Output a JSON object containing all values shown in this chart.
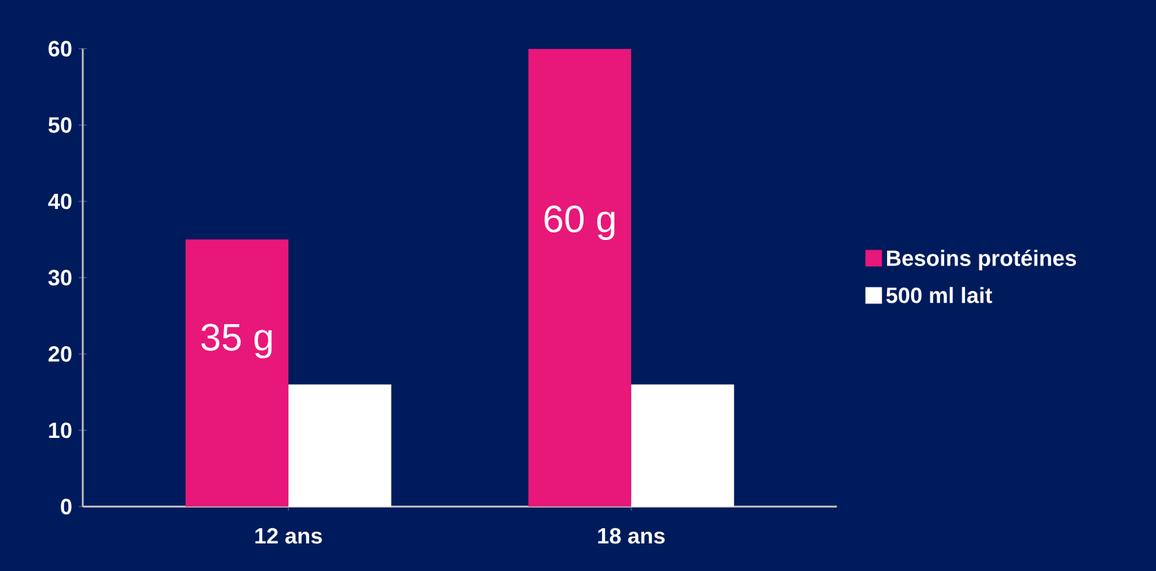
{
  "chart_data": {
    "type": "bar",
    "categories": [
      "12 ans",
      "18 ans"
    ],
    "series": [
      {
        "name": "Besoins protéines",
        "color": "#e8177a",
        "values": [
          35,
          60
        ],
        "value_labels": [
          "35 g",
          "60 g"
        ]
      },
      {
        "name": "500 ml lait",
        "color": "#ffffff",
        "values": [
          16,
          16
        ]
      }
    ],
    "ylim": [
      0,
      60
    ],
    "yticks": [
      0,
      10,
      20,
      30,
      40,
      50,
      60
    ],
    "grid": false,
    "legend": "right"
  }
}
